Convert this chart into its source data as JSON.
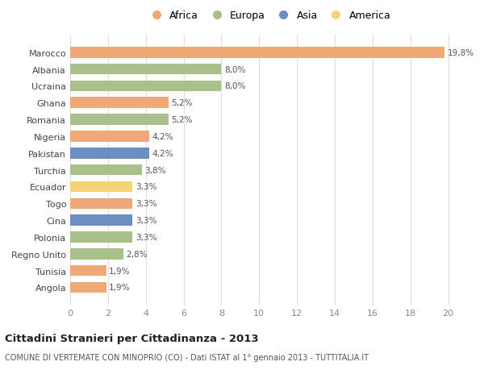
{
  "countries": [
    "Angola",
    "Tunisia",
    "Regno Unito",
    "Polonia",
    "Cina",
    "Togo",
    "Ecuador",
    "Turchia",
    "Pakistan",
    "Nigeria",
    "Romania",
    "Ghana",
    "Ucraina",
    "Albania",
    "Marocco"
  ],
  "values": [
    1.9,
    1.9,
    2.8,
    3.3,
    3.3,
    3.3,
    3.3,
    3.8,
    4.2,
    4.2,
    5.2,
    5.2,
    8.0,
    8.0,
    19.8
  ],
  "labels": [
    "1,9%",
    "1,9%",
    "2,8%",
    "3,3%",
    "3,3%",
    "3,3%",
    "3,3%",
    "3,8%",
    "4,2%",
    "4,2%",
    "5,2%",
    "5,2%",
    "8,0%",
    "8,0%",
    "19,8%"
  ],
  "continents": [
    "Africa",
    "Africa",
    "Europa",
    "Europa",
    "Asia",
    "Africa",
    "America",
    "Europa",
    "Asia",
    "Africa",
    "Europa",
    "Africa",
    "Europa",
    "Europa",
    "Africa"
  ],
  "colors": {
    "Africa": "#F0A875",
    "Europa": "#A8C08A",
    "Asia": "#6B8EC2",
    "America": "#F5D478"
  },
  "legend_order": [
    "Africa",
    "Europa",
    "Asia",
    "America"
  ],
  "title": "Cittadini Stranieri per Cittadinanza - 2013",
  "subtitle": "COMUNE DI VERTEMATE CON MINOPRIO (CO) - Dati ISTAT al 1° gennaio 2013 - TUTTITALIA.IT",
  "xlim": [
    0,
    21
  ],
  "xticks": [
    0,
    2,
    4,
    6,
    8,
    10,
    12,
    14,
    16,
    18,
    20
  ],
  "background_color": "#ffffff",
  "grid_color": "#dddddd",
  "bar_height": 0.65
}
